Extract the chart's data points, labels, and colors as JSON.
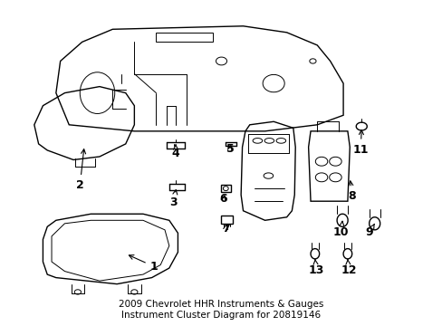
{
  "title": "2009 Chevrolet HHR Instruments & Gauges\nInstrument Cluster Diagram for 20819146",
  "bg_color": "#ffffff",
  "line_color": "#000000",
  "label_color": "#000000",
  "fig_width": 4.89,
  "fig_height": 3.6,
  "dpi": 100,
  "title_fontsize": 7.5,
  "label_fontsize": 9
}
